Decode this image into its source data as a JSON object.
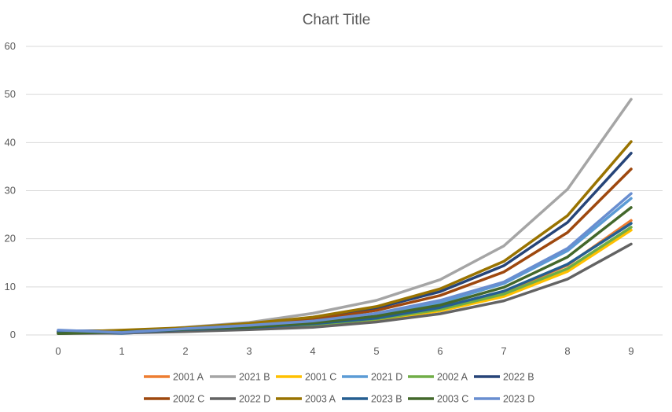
{
  "chart_data": {
    "type": "line",
    "title": "Chart Title",
    "xlabel": "",
    "ylabel": "",
    "x": [
      0,
      1,
      2,
      3,
      4,
      5,
      6,
      7,
      8,
      9
    ],
    "xlim": [
      0,
      9
    ],
    "ylim": [
      0,
      60
    ],
    "y_ticks": [
      0,
      10,
      20,
      30,
      40,
      50,
      60
    ],
    "grid": true,
    "legend_position": "bottom",
    "series": [
      {
        "name": "2001 A",
        "color": "#ED7D31",
        "values": [
          0.6,
          0.7,
          1.1,
          1.5,
          2.2,
          3.4,
          5.6,
          8.9,
          14.5,
          23.8
        ]
      },
      {
        "name": "2021 B",
        "color": "#A5A5A5",
        "values": [
          0.9,
          0.6,
          1.6,
          2.6,
          4.5,
          7.2,
          11.5,
          18.5,
          30.3,
          49.0
        ]
      },
      {
        "name": "2001 C",
        "color": "#FFC000",
        "values": [
          0.4,
          0.5,
          0.9,
          1.3,
          1.9,
          3.1,
          5.0,
          8.0,
          13.2,
          21.8
        ]
      },
      {
        "name": "2021 D",
        "color": "#5B9BD5",
        "values": [
          0.7,
          0.3,
          1.2,
          1.8,
          2.7,
          4.2,
          6.7,
          10.7,
          17.5,
          28.4
        ]
      },
      {
        "name": "2002 A",
        "color": "#70AD47",
        "values": [
          0.5,
          0.6,
          1.0,
          1.4,
          2.1,
          3.3,
          5.3,
          8.5,
          13.8,
          22.4
        ]
      },
      {
        "name": "2022 B",
        "color": "#264478",
        "values": [
          0.8,
          0.9,
          1.4,
          2.2,
          3.5,
          5.6,
          9.0,
          14.4,
          23.4,
          37.8
        ]
      },
      {
        "name": "2002 C",
        "color": "#9E480E",
        "values": [
          0.7,
          0.8,
          1.3,
          2.0,
          3.2,
          5.1,
          8.2,
          13.1,
          21.3,
          34.5
        ]
      },
      {
        "name": "2022 D",
        "color": "#636363",
        "values": [
          0.3,
          0.4,
          0.7,
          1.1,
          1.6,
          2.7,
          4.4,
          7.1,
          11.6,
          18.9
        ]
      },
      {
        "name": "2003 A",
        "color": "#997300",
        "values": [
          0.5,
          1.0,
          1.5,
          2.4,
          3.7,
          5.9,
          9.6,
          15.3,
          24.8,
          40.2
        ]
      },
      {
        "name": "2023 B",
        "color": "#255E91",
        "values": [
          0.6,
          0.5,
          1.1,
          1.5,
          2.3,
          3.5,
          5.7,
          9.1,
          14.7,
          23.2
        ]
      },
      {
        "name": "2003 C",
        "color": "#43682B",
        "values": [
          0.3,
          0.6,
          1.2,
          1.6,
          2.5,
          3.9,
          6.2,
          9.9,
          16.2,
          26.5
        ]
      },
      {
        "name": "2023 D",
        "color": "#698ED0",
        "values": [
          1.0,
          0.5,
          1.3,
          2.0,
          2.9,
          4.5,
          7.2,
          11.0,
          18.0,
          29.4
        ]
      }
    ]
  }
}
